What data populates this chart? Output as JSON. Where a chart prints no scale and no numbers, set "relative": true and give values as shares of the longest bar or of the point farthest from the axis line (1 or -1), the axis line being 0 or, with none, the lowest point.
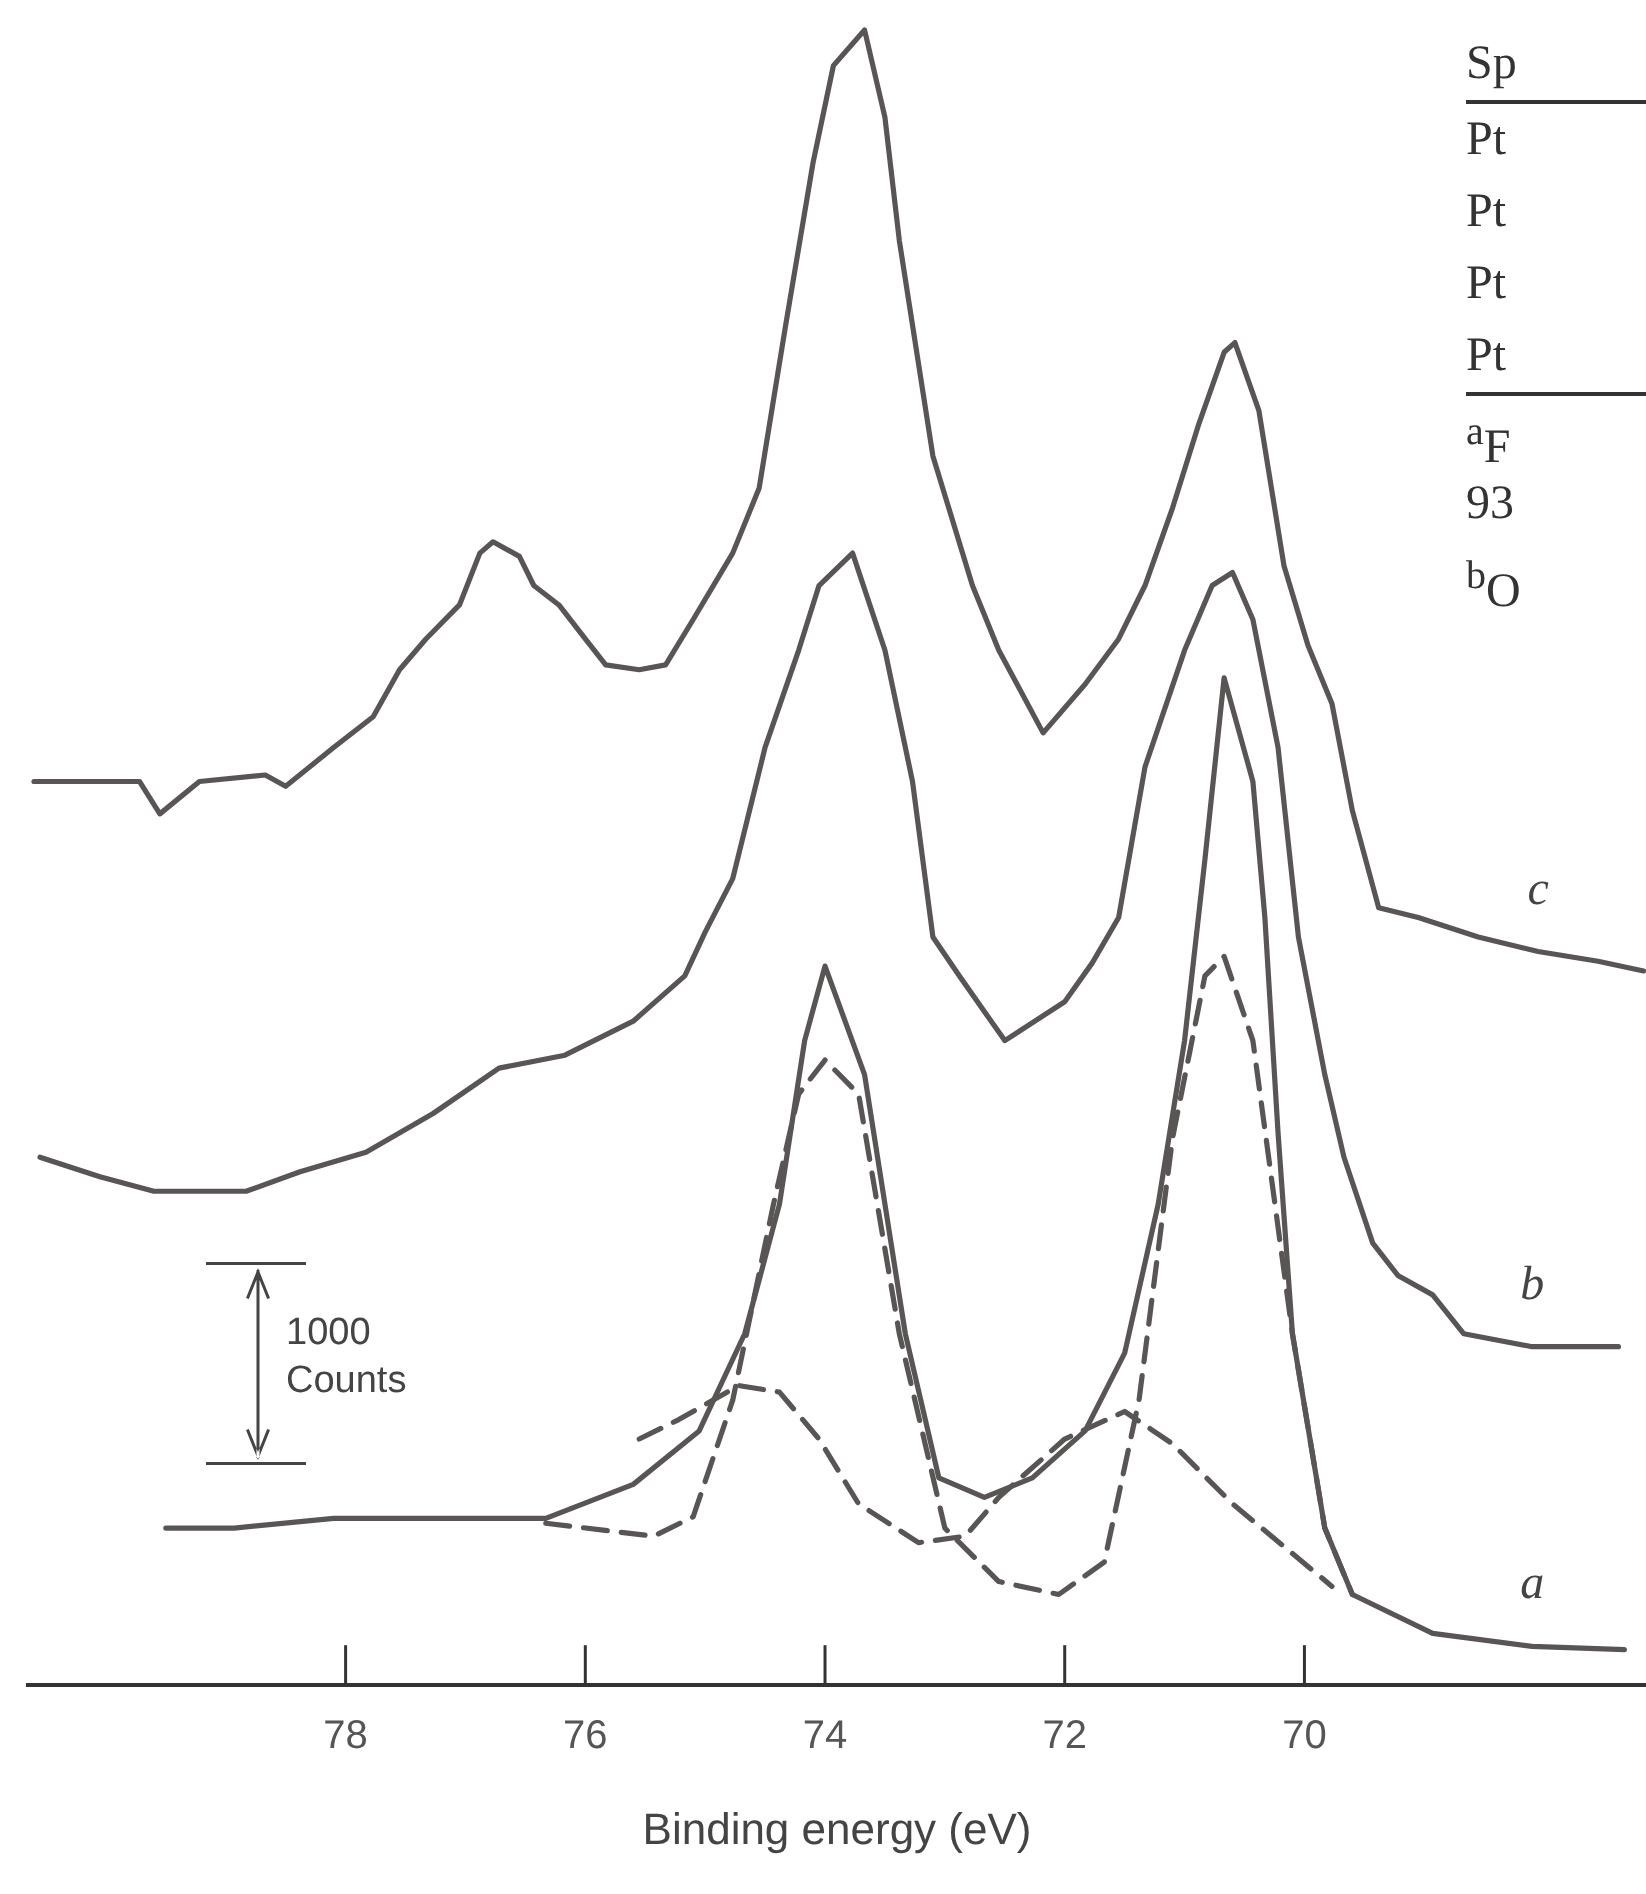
{
  "chart_data": {
    "type": "line",
    "relative": true,
    "xlabel": "Binding energy (eV)",
    "xlim": [
      80.65,
      67.15
    ],
    "xticks": [
      78,
      76,
      74,
      72,
      70
    ],
    "legend": false,
    "marker": "none",
    "annotations": [
      "1000 Counts",
      "Sp",
      "Pt",
      "Pt",
      "Pt",
      "Pt",
      "$^{a}$F",
      "93",
      "$^{b}$O"
    ],
    "series": [
      {
        "name": "c",
        "color": "#5a5555",
        "line_style": "solid",
        "x": [
          80.6,
          80.33,
          79.72,
          79.55,
          79.22,
          78.67,
          78.5,
          78.1,
          77.77,
          77.55,
          77.33,
          77.05,
          76.88,
          76.77,
          76.55,
          76.43,
          76.22,
          76.0,
          75.83,
          75.55,
          75.33,
          75.1,
          74.77,
          74.55,
          74.33,
          74.1,
          73.93,
          73.67,
          73.5,
          73.38,
          73.1,
          72.77,
          72.55,
          72.18,
          71.83,
          71.55,
          71.33,
          71.1,
          70.88,
          70.67,
          70.58,
          70.38,
          70.17,
          69.97,
          69.77,
          69.6,
          69.38,
          69.05,
          68.55,
          68.05,
          67.55,
          67.17
        ],
        "values": [
          0.536,
          0.536,
          0.536,
          0.516,
          0.536,
          0.54,
          0.533,
          0.557,
          0.576,
          0.605,
          0.624,
          0.645,
          0.677,
          0.684,
          0.675,
          0.657,
          0.645,
          0.624,
          0.608,
          0.605,
          0.608,
          0.636,
          0.677,
          0.717,
          0.817,
          0.918,
          0.978,
          1.0,
          0.946,
          0.87,
          0.737,
          0.657,
          0.617,
          0.566,
          0.596,
          0.624,
          0.657,
          0.705,
          0.757,
          0.801,
          0.807,
          0.765,
          0.669,
          0.62,
          0.584,
          0.518,
          0.458,
          0.452,
          0.44,
          0.431,
          0.425,
          0.419
        ]
      },
      {
        "name": "b",
        "color": "#5a5555",
        "line_style": "solid",
        "x": [
          80.55,
          80.05,
          79.6,
          78.83,
          78.38,
          77.83,
          77.27,
          76.72,
          76.17,
          75.6,
          75.17,
          75.0,
          74.77,
          74.5,
          74.22,
          74.05,
          73.77,
          73.5,
          73.27,
          73.1,
          72.88,
          72.5,
          72.0,
          71.77,
          71.55,
          71.33,
          71.0,
          70.77,
          70.6,
          70.43,
          70.22,
          70.05,
          69.83,
          69.67,
          69.43,
          69.22,
          68.93,
          68.67,
          68.1,
          67.38
        ],
        "values": [
          0.304,
          0.292,
          0.283,
          0.283,
          0.295,
          0.307,
          0.331,
          0.359,
          0.367,
          0.388,
          0.416,
          0.443,
          0.476,
          0.557,
          0.617,
          0.657,
          0.677,
          0.617,
          0.536,
          0.44,
          0.416,
          0.376,
          0.4,
          0.424,
          0.452,
          0.545,
          0.617,
          0.657,
          0.665,
          0.636,
          0.557,
          0.44,
          0.355,
          0.304,
          0.251,
          0.231,
          0.219,
          0.195,
          0.187,
          0.187
        ]
      },
      {
        "name": "a",
        "color": "#5a5555",
        "line_style": "solid",
        "x": [
          79.5,
          78.93,
          78.1,
          76.33,
          75.6,
          75.05,
          74.67,
          74.38,
          74.17,
          74.0,
          73.67,
          73.33,
          73.05,
          72.67,
          72.27,
          71.83,
          71.5,
          71.22,
          71.0,
          70.83,
          70.67,
          70.43,
          70.33,
          70.22,
          70.1,
          69.83,
          69.6,
          68.93,
          68.1,
          67.33
        ],
        "values": [
          0.075,
          0.075,
          0.081,
          0.081,
          0.102,
          0.135,
          0.195,
          0.275,
          0.376,
          0.422,
          0.355,
          0.195,
          0.106,
          0.094,
          0.106,
          0.135,
          0.183,
          0.275,
          0.376,
          0.488,
          0.6,
          0.536,
          0.452,
          0.319,
          0.195,
          0.075,
          0.034,
          0.01,
          0.002,
          0.0
        ]
      },
      {
        "color": "#5a5555",
        "line_style": "dashed",
        "x": [
          76.33,
          75.43,
          75.1,
          74.77,
          74.43,
          74.22,
          74.0,
          73.72,
          73.38,
          73.0,
          72.55,
          72.05,
          71.67,
          71.38,
          71.1,
          70.83,
          70.67,
          70.43,
          70.1,
          69.83,
          69.6
        ],
        "values": [
          0.078,
          0.07,
          0.082,
          0.154,
          0.275,
          0.343,
          0.364,
          0.343,
          0.195,
          0.075,
          0.042,
          0.034,
          0.054,
          0.154,
          0.316,
          0.416,
          0.428,
          0.376,
          0.195,
          0.075,
          0.034
        ]
      },
      {
        "color": "#5a5555",
        "line_style": "dashed",
        "x": [
          75.55,
          75.22,
          74.72,
          74.38,
          74.05,
          73.72,
          73.22,
          72.83,
          72.55,
          72.0,
          71.5,
          71.1,
          70.6,
          69.77
        ],
        "values": [
          0.13,
          0.142,
          0.163,
          0.159,
          0.13,
          0.09,
          0.066,
          0.07,
          0.094,
          0.13,
          0.147,
          0.127,
          0.09,
          0.039
        ]
      }
    ]
  }
}
